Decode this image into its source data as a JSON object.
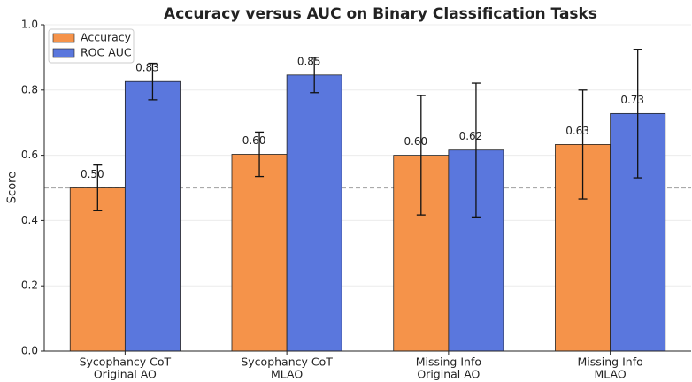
{
  "chart_data": {
    "type": "bar",
    "title": "Accuracy versus AUC on Binary Classification Tasks",
    "y_label": "Score",
    "categories": [
      [
        "Sycophancy CoT",
        "Original AO"
      ],
      [
        "Sycophancy CoT",
        "MLAO"
      ],
      [
        "Missing Info",
        "Original AO"
      ],
      [
        "Missing Info",
        "MLAO"
      ]
    ],
    "series": [
      {
        "name": "Accuracy",
        "color": "#f5934a",
        "values": [
          0.5,
          0.603,
          0.6,
          0.633
        ],
        "value_labels": [
          "0.50",
          "0.60",
          "0.60",
          "0.63"
        ],
        "errors": [
          0.07,
          0.068,
          0.183,
          0.167
        ]
      },
      {
        "name": "ROC AUC",
        "color": "#5a77dd",
        "values": [
          0.826,
          0.846,
          0.616,
          0.728
        ],
        "value_labels": [
          "0.83",
          "0.85",
          "0.62",
          "0.73"
        ],
        "errors": [
          0.056,
          0.054,
          0.205,
          0.197
        ]
      }
    ],
    "reference_line": 0.5,
    "ylim": [
      0,
      1
    ],
    "yticks": [
      {
        "value": 0,
        "label": "0.0"
      },
      {
        "value": 0.2,
        "label": "0.2"
      },
      {
        "value": 0.4,
        "label": "0.4"
      },
      {
        "value": 0.6,
        "label": "0.6"
      },
      {
        "value": 0.8,
        "label": "0.8"
      },
      {
        "value": 1,
        "label": "1.0"
      }
    ],
    "grid": true,
    "legend": "upper left"
  }
}
